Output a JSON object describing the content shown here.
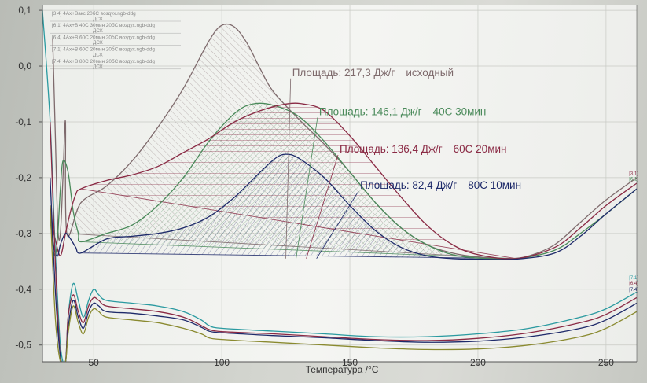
{
  "colors": {
    "original": "#7e6a6c",
    "c40_30": "#4a8a5a",
    "c60_20": "#8a2a44",
    "c80_10": "#1e2a6a",
    "cyan": "#2a9aa0",
    "olive": "#8a8a30",
    "grid": "#c8cac4",
    "axis": "#555555"
  },
  "chart_data": {
    "type": "line",
    "title": "",
    "xlabel": "Температура /°C",
    "ylabel": "",
    "xlim": [
      30,
      262
    ],
    "ylim": [
      -0.53,
      0.11
    ],
    "grid": true,
    "x_ticks": [
      {
        "value": 50,
        "label": "50"
      },
      {
        "value": 100,
        "label": "100"
      },
      {
        "value": 150,
        "label": "150"
      },
      {
        "value": 200,
        "label": "200"
      },
      {
        "value": 250,
        "label": "250"
      }
    ],
    "y_ticks": [
      {
        "value": 0.1,
        "label": "0,1"
      },
      {
        "value": 0.0,
        "label": "0,0"
      },
      {
        "value": -0.1,
        "label": "-0,1"
      },
      {
        "value": -0.2,
        "label": "-0,2"
      },
      {
        "value": -0.3,
        "label": "-0,3"
      },
      {
        "value": -0.4,
        "label": "-0,4"
      },
      {
        "value": -0.5,
        "label": "-0,5"
      }
    ],
    "legend": {
      "placement": "top-left",
      "entries": [
        {
          "text": "[3.4] 4Ах+Вакс 20бС воздух.ngb-ddg",
          "sub": "ДСК"
        },
        {
          "text": "[6.1] 4Ах+В 40С 30мин 20бС воздух.ngb-ddg",
          "sub": "ДСК"
        },
        {
          "text": "[6.4] 4Ах+В 60С 20мин 20бС воздух.ngb-ddg",
          "sub": "ДСК"
        },
        {
          "text": "[7.1] 4Ах+В 60С 20мин 20бС воздух.ngb-ddg",
          "sub": "ДСК"
        },
        {
          "text": "[7.4] 4Ах+В 80С 20мин 20бС воздух.ngb-ddg",
          "sub": "ДСК"
        }
      ]
    },
    "annotations": [
      {
        "text": "Площадь: 217,3 Дж/г",
        "label": "исходный",
        "color": "original",
        "x_value": 127.5,
        "y_value": -0.018,
        "anchor_x": 125,
        "anchor_y": -0.345
      },
      {
        "text": "Площадь: 146,1 Дж/г",
        "label": "40С 30мин",
        "color": "c40_30",
        "x_value": 138,
        "y_value": -0.088,
        "anchor_x": 129,
        "anchor_y": -0.345
      },
      {
        "text": "Площадь: 136,4 Дж/г",
        "label": "60С 20мин",
        "color": "c60_20",
        "x_value": 146,
        "y_value": -0.155,
        "anchor_x": 133,
        "anchor_y": -0.345
      },
      {
        "text": "Площадь: 82,4 Дж/г",
        "label": "80С 10мин",
        "color": "c80_10",
        "x_value": 154,
        "y_value": -0.22,
        "anchor_x": 137,
        "anchor_y": -0.345
      }
    ],
    "end_tags": [
      {
        "text": "[3.1]",
        "x_value": 259,
        "y_value": -0.195,
        "color": "c60_20"
      },
      {
        "text": "[6.1]",
        "x_value": 259,
        "y_value": -0.205,
        "color": "c40_30"
      },
      {
        "text": "[7.1]",
        "x_value": 259,
        "y_value": -0.382,
        "color": "cyan"
      },
      {
        "text": "[6.4]",
        "x_value": 259,
        "y_value": -0.392,
        "color": "c60_20"
      },
      {
        "text": "[7.4]",
        "x_value": 259,
        "y_value": -0.403,
        "color": "c80_10"
      }
    ],
    "peaks": [
      {
        "name": "",
        "color": "original",
        "hatch": "hatch-original",
        "base_start": [
          39,
          -0.3
        ],
        "base_end": [
          212,
          -0.345
        ],
        "x": [
          39,
          45,
          55,
          65,
          75,
          85,
          95,
          100,
          105,
          110,
          115,
          120,
          130,
          140,
          150,
          160,
          170,
          180,
          190,
          200,
          212
        ],
        "y": [
          -0.3,
          -0.245,
          -0.215,
          -0.17,
          -0.11,
          -0.04,
          0.045,
          0.073,
          0.07,
          0.04,
          -0.005,
          -0.045,
          -0.095,
          -0.14,
          -0.19,
          -0.245,
          -0.29,
          -0.32,
          -0.335,
          -0.342,
          -0.345
        ]
      },
      {
        "name": "",
        "color": "c40_30",
        "hatch": "hatch-40",
        "base_start": [
          45,
          -0.315
        ],
        "base_end": [
          215,
          -0.345
        ],
        "x": [
          45,
          55,
          65,
          75,
          85,
          95,
          105,
          112,
          120,
          130,
          140,
          150,
          160,
          170,
          180,
          190,
          200,
          215
        ],
        "y": [
          -0.315,
          -0.3,
          -0.285,
          -0.25,
          -0.2,
          -0.135,
          -0.085,
          -0.068,
          -0.07,
          -0.09,
          -0.135,
          -0.19,
          -0.245,
          -0.29,
          -0.32,
          -0.338,
          -0.344,
          -0.345
        ]
      },
      {
        "name": "",
        "color": "c60_20",
        "hatch": "hatch-60",
        "base_start": [
          45,
          -0.22
        ],
        "base_end": [
          215,
          -0.345
        ],
        "x": [
          45,
          55,
          65,
          75,
          85,
          95,
          105,
          115,
          125,
          132,
          140,
          150,
          160,
          170,
          180,
          190,
          200,
          215
        ],
        "y": [
          -0.22,
          -0.205,
          -0.195,
          -0.18,
          -0.155,
          -0.13,
          -0.1,
          -0.08,
          -0.068,
          -0.068,
          -0.08,
          -0.125,
          -0.18,
          -0.235,
          -0.285,
          -0.32,
          -0.338,
          -0.345
        ]
      },
      {
        "name": "",
        "color": "c80_10",
        "hatch": "hatch-80",
        "base_start": [
          45,
          -0.335
        ],
        "base_end": [
          215,
          -0.345
        ],
        "x": [
          45,
          55,
          65,
          75,
          85,
          95,
          105,
          115,
          121,
          125,
          130,
          140,
          150,
          160,
          170,
          180,
          190,
          200,
          215
        ],
        "y": [
          -0.335,
          -0.31,
          -0.305,
          -0.3,
          -0.29,
          -0.27,
          -0.235,
          -0.19,
          -0.165,
          -0.158,
          -0.165,
          -0.2,
          -0.25,
          -0.295,
          -0.325,
          -0.34,
          -0.345,
          -0.346,
          -0.346
        ]
      }
    ],
    "series": [
      {
        "name": "",
        "color": "original",
        "x": [
          34,
          35,
          36,
          37,
          38,
          39,
          39.5,
          45,
          55,
          65,
          75,
          85,
          95,
          100,
          105,
          110,
          115,
          120,
          130,
          140,
          150,
          160,
          170,
          180,
          190,
          200,
          212,
          220,
          230,
          240,
          250,
          262
        ],
        "y": [
          0.05,
          -0.12,
          -0.29,
          -0.3,
          -0.2,
          -0.1,
          -0.3,
          -0.245,
          -0.215,
          -0.17,
          -0.11,
          -0.04,
          0.045,
          0.073,
          0.07,
          0.04,
          -0.005,
          -0.045,
          -0.095,
          -0.14,
          -0.19,
          -0.245,
          -0.29,
          -0.32,
          -0.335,
          -0.342,
          -0.345,
          -0.34,
          -0.32,
          -0.28,
          -0.24,
          -0.2
        ]
      },
      {
        "name": "",
        "color": "c40_30",
        "x": [
          33,
          34,
          35,
          36,
          37,
          38,
          40,
          42,
          44,
          45,
          55,
          65,
          75,
          85,
          95,
          105,
          112,
          120,
          130,
          140,
          150,
          160,
          170,
          180,
          190,
          200,
          215,
          230,
          240,
          250,
          262
        ],
        "y": [
          -0.27,
          -0.32,
          -0.34,
          -0.3,
          -0.22,
          -0.17,
          -0.19,
          -0.26,
          -0.3,
          -0.315,
          -0.3,
          -0.285,
          -0.25,
          -0.2,
          -0.135,
          -0.085,
          -0.068,
          -0.07,
          -0.09,
          -0.135,
          -0.19,
          -0.245,
          -0.29,
          -0.32,
          -0.338,
          -0.344,
          -0.345,
          -0.33,
          -0.3,
          -0.265,
          -0.22
        ]
      },
      {
        "name": "",
        "color": "c60_20",
        "x": [
          33,
          34,
          35,
          37,
          39,
          41,
          43,
          45,
          55,
          65,
          75,
          85,
          95,
          105,
          115,
          125,
          132,
          140,
          150,
          160,
          170,
          180,
          190,
          200,
          215,
          230,
          240,
          250,
          262
        ],
        "y": [
          -0.25,
          -0.29,
          -0.31,
          -0.34,
          -0.3,
          -0.26,
          -0.23,
          -0.22,
          -0.205,
          -0.195,
          -0.18,
          -0.155,
          -0.13,
          -0.1,
          -0.08,
          -0.068,
          -0.068,
          -0.08,
          -0.125,
          -0.18,
          -0.235,
          -0.285,
          -0.32,
          -0.338,
          -0.345,
          -0.325,
          -0.29,
          -0.25,
          -0.21
        ]
      },
      {
        "name": "",
        "color": "c80_10",
        "x": [
          33,
          34,
          35,
          36,
          37,
          39,
          41,
          43,
          45,
          55,
          65,
          75,
          85,
          95,
          105,
          115,
          121,
          125,
          130,
          140,
          150,
          160,
          170,
          180,
          190,
          200,
          215,
          230,
          240,
          250,
          262
        ],
        "y": [
          -0.26,
          -0.31,
          -0.335,
          -0.34,
          -0.32,
          -0.3,
          -0.31,
          -0.325,
          -0.335,
          -0.31,
          -0.305,
          -0.3,
          -0.29,
          -0.27,
          -0.235,
          -0.19,
          -0.165,
          -0.158,
          -0.165,
          -0.2,
          -0.25,
          -0.295,
          -0.325,
          -0.34,
          -0.345,
          -0.346,
          -0.346,
          -0.335,
          -0.305,
          -0.265,
          -0.22
        ]
      },
      {
        "name": "",
        "color": "cyan",
        "x": [
          30,
          33,
          35,
          37,
          39,
          40,
          42,
          44,
          46,
          48,
          50,
          52,
          55,
          65,
          75,
          85,
          92,
          95,
          100,
          120,
          140,
          160,
          180,
          200,
          220,
          240,
          250,
          262
        ],
        "y": [
          0.1,
          -0.1,
          -0.33,
          -0.5,
          -0.53,
          -0.45,
          -0.39,
          -0.42,
          -0.45,
          -0.42,
          -0.4,
          -0.41,
          -0.42,
          -0.425,
          -0.43,
          -0.44,
          -0.455,
          -0.465,
          -0.47,
          -0.475,
          -0.48,
          -0.485,
          -0.485,
          -0.48,
          -0.47,
          -0.45,
          -0.435,
          -0.405
        ]
      },
      {
        "name": "",
        "color": "c60_20",
        "x": [
          33,
          35,
          37,
          39,
          40,
          42,
          44,
          46,
          48,
          50,
          52,
          55,
          65,
          75,
          85,
          92,
          95,
          100,
          120,
          140,
          160,
          180,
          200,
          220,
          240,
          250,
          262
        ],
        "y": [
          -0.1,
          -0.35,
          -0.52,
          -0.53,
          -0.45,
          -0.41,
          -0.44,
          -0.46,
          -0.43,
          -0.415,
          -0.42,
          -0.43,
          -0.435,
          -0.44,
          -0.45,
          -0.465,
          -0.472,
          -0.476,
          -0.48,
          -0.485,
          -0.49,
          -0.492,
          -0.488,
          -0.478,
          -0.46,
          -0.445,
          -0.415
        ]
      },
      {
        "name": "",
        "color": "c80_10",
        "x": [
          33,
          35,
          37,
          39,
          40,
          42,
          44,
          46,
          48,
          50,
          52,
          55,
          65,
          75,
          85,
          92,
          95,
          100,
          120,
          140,
          160,
          180,
          200,
          220,
          240,
          250,
          262
        ],
        "y": [
          -0.2,
          -0.4,
          -0.52,
          -0.53,
          -0.47,
          -0.42,
          -0.45,
          -0.47,
          -0.44,
          -0.425,
          -0.43,
          -0.44,
          -0.443,
          -0.448,
          -0.455,
          -0.468,
          -0.475,
          -0.478,
          -0.483,
          -0.487,
          -0.492,
          -0.495,
          -0.493,
          -0.485,
          -0.47,
          -0.455,
          -0.425
        ]
      },
      {
        "name": "",
        "color": "olive",
        "x": [
          33,
          35,
          37,
          39,
          40,
          42,
          44,
          46,
          48,
          50,
          52,
          55,
          65,
          75,
          85,
          92,
          95,
          100,
          120,
          140,
          160,
          180,
          200,
          220,
          240,
          250,
          262
        ],
        "y": [
          -0.25,
          -0.45,
          -0.53,
          -0.53,
          -0.48,
          -0.43,
          -0.46,
          -0.48,
          -0.45,
          -0.435,
          -0.44,
          -0.45,
          -0.455,
          -0.46,
          -0.47,
          -0.48,
          -0.487,
          -0.49,
          -0.495,
          -0.5,
          -0.505,
          -0.508,
          -0.507,
          -0.5,
          -0.485,
          -0.47,
          -0.44
        ]
      }
    ]
  }
}
